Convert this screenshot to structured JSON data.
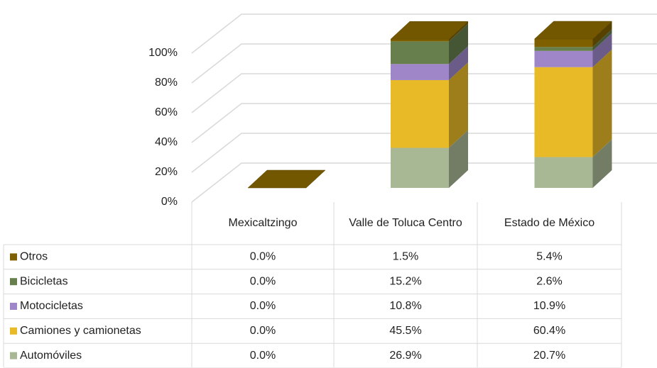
{
  "chart_data": {
    "type": "bar",
    "stacked": true,
    "categories": [
      "Mexicaltzingo",
      "Valle de Toluca Centro",
      "Estado de México"
    ],
    "series": [
      {
        "name": "Otros",
        "color": "#7f6000",
        "values": [
          0,
          1.5,
          5.4
        ],
        "value_labels": [
          "0.0%",
          "1.5%",
          "5.4%"
        ]
      },
      {
        "name": "Bicicletas",
        "color": "#667f4c",
        "values": [
          0,
          15.2,
          2.6
        ],
        "value_labels": [
          "0.0%",
          "15.2%",
          "2.6%"
        ]
      },
      {
        "name": "Motocicletas",
        "color": "#9e86c8",
        "values": [
          0,
          10.8,
          10.9
        ],
        "value_labels": [
          "0.0%",
          "10.8%",
          "10.9%"
        ]
      },
      {
        "name": "Camiones y camionetas",
        "color": "#e8ba28",
        "values": [
          0,
          45.5,
          60.4
        ],
        "value_labels": [
          "0.0%",
          "45.5%",
          "60.4%"
        ]
      },
      {
        "name": "Automóviles",
        "color": "#a9b894",
        "values": [
          0,
          26.9,
          20.7
        ],
        "value_labels": [
          "0.0%",
          "26.9%",
          "20.7%"
        ]
      }
    ],
    "ylim": [
      0,
      100
    ],
    "yticks": [
      {
        "value": 0,
        "label": "0%"
      },
      {
        "value": 20,
        "label": "20%"
      },
      {
        "value": 40,
        "label": "40%"
      },
      {
        "value": 60,
        "label": "60%"
      },
      {
        "value": 80,
        "label": "80%"
      },
      {
        "value": 100,
        "label": "100%"
      }
    ],
    "grid": true
  }
}
